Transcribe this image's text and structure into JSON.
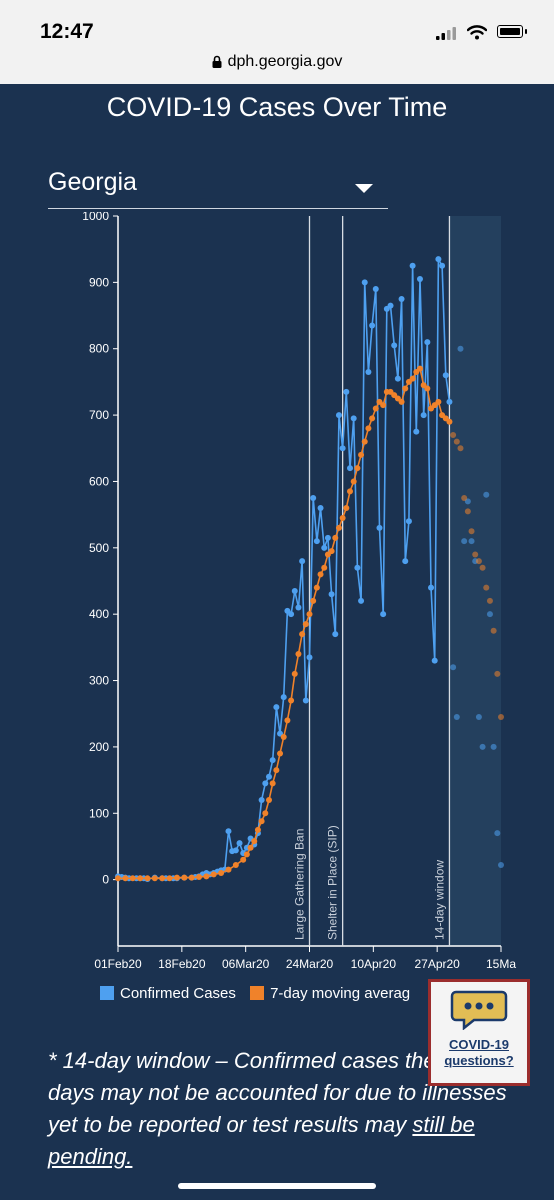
{
  "status_bar": {
    "time": "12:47",
    "url": "dph.georgia.gov"
  },
  "page": {
    "title": "COVID-19 Cases Over Time",
    "region_select": "Georgia"
  },
  "colors": {
    "background": "#1b3250",
    "confirmed": "#4ea0f0",
    "moving_avg": "#f0822a"
  },
  "legend": {
    "confirmed": "Confirmed Cases",
    "moving_avg": "7-day moving averag"
  },
  "footnote": {
    "text_before": "* 14-day window – Confirmed cases the last 14 days may not be accounted for due to illnesses yet to be reported or test results may ",
    "text_underlined": "still be pending."
  },
  "help_widget": {
    "line1": "COVID-19",
    "line2": "questions?",
    "icon": "chat-bubble-icon"
  },
  "chart_data": {
    "type": "line",
    "y_ticks": [
      "1000",
      "900",
      "800",
      "700",
      "600",
      "500",
      "400",
      "300",
      "200",
      "100",
      "0"
    ],
    "x_ticks": [
      "01Feb20",
      "18Feb20",
      "06Mar20",
      "24Mar20",
      "10Apr20",
      "27Apr20",
      "15Ma"
    ],
    "ylim": [
      -100,
      1000
    ],
    "xlim": [
      0,
      104
    ],
    "annotations": [
      {
        "x": 52,
        "label": "Large Gathering Ban"
      },
      {
        "x": 61,
        "label": "Shelter in Place (SIP)"
      },
      {
        "x": 90,
        "label": "14-day window"
      }
    ],
    "window_start": 90,
    "series": [
      {
        "name": "Confirmed Cases",
        "values": [
          [
            0,
            5
          ],
          [
            1,
            4
          ],
          [
            2,
            3
          ],
          [
            3,
            2
          ],
          [
            5,
            2
          ],
          [
            6,
            2
          ],
          [
            7,
            2
          ],
          [
            8,
            1
          ],
          [
            10,
            3
          ],
          [
            12,
            2
          ],
          [
            13,
            2
          ],
          [
            15,
            2
          ],
          [
            16,
            2
          ],
          [
            18,
            3
          ],
          [
            20,
            3
          ],
          [
            21,
            4
          ],
          [
            22,
            5
          ],
          [
            23,
            8
          ],
          [
            24,
            10
          ],
          [
            25,
            8
          ],
          [
            26,
            10
          ],
          [
            27,
            12
          ],
          [
            28,
            14
          ],
          [
            29,
            15
          ],
          [
            30,
            73
          ],
          [
            31,
            43
          ],
          [
            32,
            44
          ],
          [
            33,
            55
          ],
          [
            34,
            40
          ],
          [
            35,
            48
          ],
          [
            36,
            62
          ],
          [
            37,
            53
          ],
          [
            38,
            70
          ],
          [
            39,
            120
          ],
          [
            40,
            145
          ],
          [
            41,
            155
          ],
          [
            42,
            180
          ],
          [
            43,
            260
          ],
          [
            44,
            220
          ],
          [
            45,
            275
          ],
          [
            46,
            405
          ],
          [
            47,
            400
          ],
          [
            48,
            435
          ],
          [
            49,
            410
          ],
          [
            50,
            480
          ],
          [
            51,
            270
          ],
          [
            52,
            335
          ],
          [
            53,
            575
          ],
          [
            54,
            510
          ],
          [
            55,
            560
          ],
          [
            56,
            500
          ],
          [
            57,
            515
          ],
          [
            58,
            430
          ],
          [
            59,
            370
          ],
          [
            60,
            700
          ],
          [
            61,
            650
          ],
          [
            62,
            735
          ],
          [
            63,
            620
          ],
          [
            64,
            695
          ],
          [
            65,
            470
          ],
          [
            66,
            420
          ],
          [
            67,
            900
          ],
          [
            68,
            765
          ],
          [
            69,
            835
          ],
          [
            70,
            890
          ],
          [
            71,
            530
          ],
          [
            72,
            400
          ],
          [
            73,
            860
          ],
          [
            74,
            865
          ],
          [
            75,
            805
          ],
          [
            76,
            755
          ],
          [
            77,
            875
          ],
          [
            78,
            480
          ],
          [
            79,
            540
          ],
          [
            80,
            925
          ],
          [
            81,
            675
          ],
          [
            82,
            905
          ],
          [
            83,
            700
          ],
          [
            84,
            810
          ],
          [
            85,
            440
          ],
          [
            86,
            330
          ],
          [
            87,
            935
          ],
          [
            88,
            925
          ],
          [
            89,
            760
          ],
          [
            90,
            720
          ],
          [
            91,
            320
          ],
          [
            92,
            245
          ],
          [
            93,
            800
          ],
          [
            94,
            510
          ],
          [
            95,
            570
          ],
          [
            96,
            510
          ],
          [
            97,
            480
          ],
          [
            98,
            245
          ],
          [
            99,
            200
          ],
          [
            100,
            580
          ],
          [
            101,
            400
          ],
          [
            102,
            200
          ],
          [
            103,
            70
          ],
          [
            104,
            22
          ]
        ]
      },
      {
        "name": "7-day moving averag",
        "values": [
          [
            0,
            2
          ],
          [
            2,
            2
          ],
          [
            4,
            2
          ],
          [
            6,
            2
          ],
          [
            8,
            2
          ],
          [
            10,
            2
          ],
          [
            12,
            2
          ],
          [
            14,
            2
          ],
          [
            16,
            3
          ],
          [
            18,
            3
          ],
          [
            20,
            3
          ],
          [
            22,
            4
          ],
          [
            24,
            5
          ],
          [
            26,
            8
          ],
          [
            28,
            10
          ],
          [
            30,
            15
          ],
          [
            32,
            22
          ],
          [
            34,
            30
          ],
          [
            35,
            38
          ],
          [
            36,
            48
          ],
          [
            37,
            58
          ],
          [
            38,
            75
          ],
          [
            39,
            88
          ],
          [
            40,
            100
          ],
          [
            41,
            120
          ],
          [
            42,
            145
          ],
          [
            43,
            165
          ],
          [
            44,
            190
          ],
          [
            45,
            215
          ],
          [
            46,
            240
          ],
          [
            47,
            270
          ],
          [
            48,
            310
          ],
          [
            49,
            340
          ],
          [
            50,
            370
          ],
          [
            51,
            385
          ],
          [
            52,
            400
          ],
          [
            53,
            420
          ],
          [
            54,
            440
          ],
          [
            55,
            460
          ],
          [
            56,
            470
          ],
          [
            57,
            490
          ],
          [
            58,
            495
          ],
          [
            59,
            515
          ],
          [
            60,
            530
          ],
          [
            61,
            545
          ],
          [
            62,
            560
          ],
          [
            63,
            585
          ],
          [
            64,
            600
          ],
          [
            65,
            620
          ],
          [
            66,
            640
          ],
          [
            67,
            660
          ],
          [
            68,
            680
          ],
          [
            69,
            695
          ],
          [
            70,
            710
          ],
          [
            71,
            720
          ],
          [
            72,
            715
          ],
          [
            73,
            735
          ],
          [
            74,
            735
          ],
          [
            75,
            730
          ],
          [
            76,
            725
          ],
          [
            77,
            720
          ],
          [
            78,
            740
          ],
          [
            79,
            750
          ],
          [
            80,
            755
          ],
          [
            81,
            765
          ],
          [
            82,
            770
          ],
          [
            83,
            745
          ],
          [
            84,
            740
          ],
          [
            85,
            710
          ],
          [
            86,
            715
          ],
          [
            87,
            720
          ],
          [
            88,
            700
          ],
          [
            89,
            695
          ],
          [
            90,
            690
          ],
          [
            91,
            670
          ],
          [
            92,
            660
          ],
          [
            93,
            650
          ],
          [
            94,
            575
          ],
          [
            95,
            555
          ],
          [
            96,
            525
          ],
          [
            97,
            490
          ],
          [
            98,
            480
          ],
          [
            99,
            470
          ],
          [
            100,
            440
          ],
          [
            101,
            420
          ],
          [
            102,
            375
          ],
          [
            103,
            310
          ],
          [
            104,
            245
          ]
        ]
      }
    ]
  }
}
